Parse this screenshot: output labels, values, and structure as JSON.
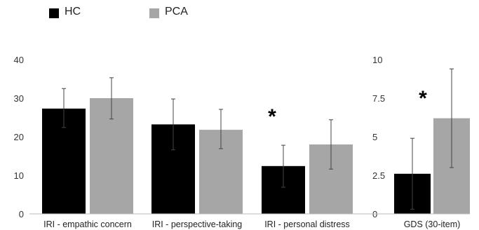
{
  "legend": [
    {
      "label": "HC",
      "color": "#000000"
    },
    {
      "label": "PCA",
      "color": "#a6a6a6"
    }
  ],
  "chart_data": [
    {
      "type": "bar",
      "categories": [
        "IRI - empathic concern",
        "IRI - perspective-taking",
        "IRI - personal distress"
      ],
      "series": [
        {
          "name": "HC",
          "values": [
            27.3,
            23.2,
            12.4
          ],
          "error_low": [
            22.4,
            16.6,
            6.9
          ],
          "error_high": [
            32.5,
            29.8,
            17.8
          ],
          "color": "#000000"
        },
        {
          "name": "PCA",
          "values": [
            30.0,
            21.8,
            18.0
          ],
          "error_low": [
            24.6,
            16.9,
            11.6
          ],
          "error_high": [
            35.3,
            27.1,
            24.4
          ],
          "color": "#a6a6a6"
        }
      ],
      "ylim": [
        0,
        40
      ],
      "yticks": [
        "0",
        "10",
        "20",
        "30",
        "40"
      ],
      "ytick_values": [
        0,
        10,
        20,
        30,
        40
      ],
      "significance": [
        {
          "category_index": 2,
          "label": "*"
        }
      ],
      "grid": false
    },
    {
      "type": "bar",
      "categories": [
        "GDS (30-item)"
      ],
      "series": [
        {
          "name": "HC",
          "values": [
            2.6
          ],
          "error_low": [
            0.3
          ],
          "error_high": [
            4.9
          ],
          "color": "#000000"
        },
        {
          "name": "PCA",
          "values": [
            6.2
          ],
          "error_low": [
            3.0
          ],
          "error_high": [
            9.4
          ],
          "color": "#a6a6a6"
        }
      ],
      "ylim": [
        0,
        10
      ],
      "yticks": [
        "0",
        "2.5",
        "5",
        "7.5",
        "10"
      ],
      "ytick_values": [
        0,
        2.5,
        5,
        7.5,
        10
      ],
      "significance": [
        {
          "category_index": 0,
          "label": "*"
        }
      ],
      "grid": false
    }
  ]
}
